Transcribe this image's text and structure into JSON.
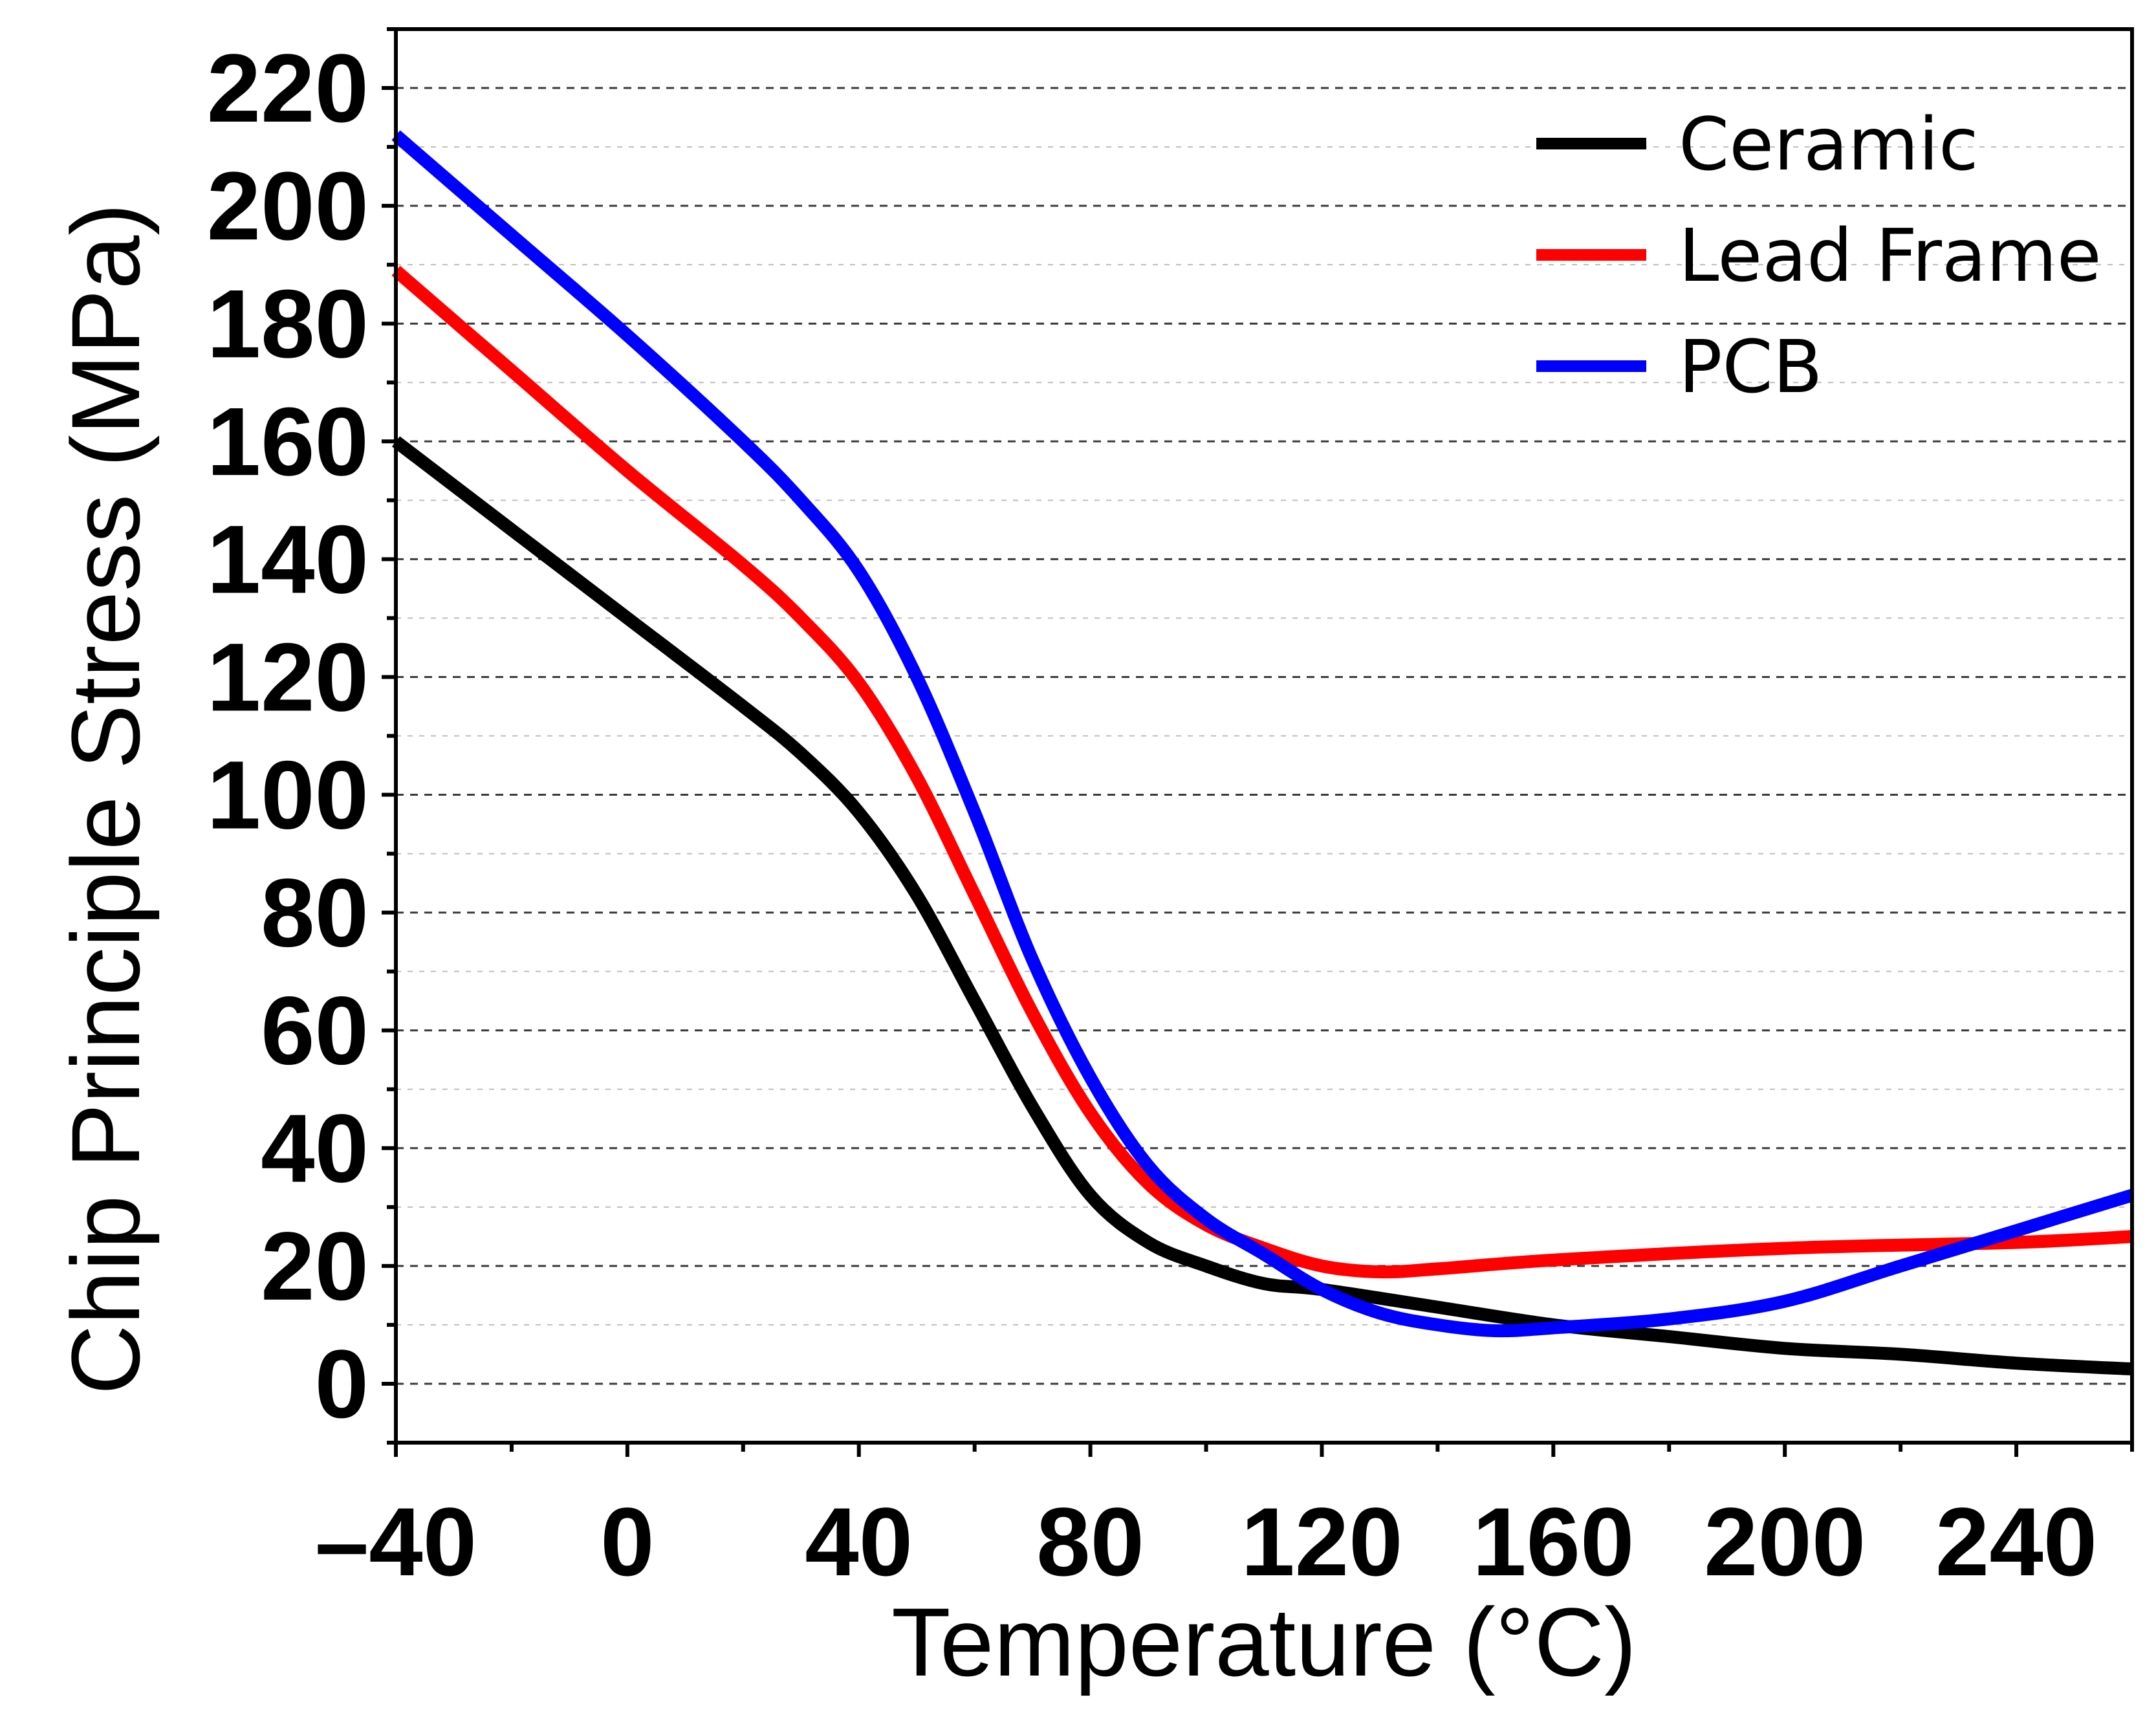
{
  "chart_data": {
    "type": "line",
    "title": "",
    "xlabel": "Temperature (°C)",
    "ylabel": "Chip Principle Stress (MPa)",
    "xlim": [
      -40,
      260
    ],
    "ylim": [
      -10,
      230
    ],
    "x_ticks": [
      -40,
      0,
      40,
      80,
      120,
      160,
      200,
      240
    ],
    "x_tick_labels": [
      "–40",
      "0",
      "40",
      "80",
      "120",
      "160",
      "200",
      "240"
    ],
    "y_ticks": [
      0,
      20,
      40,
      60,
      80,
      100,
      120,
      140,
      160,
      180,
      200,
      220
    ],
    "y_tick_labels": [
      "0",
      "20",
      "40",
      "60",
      "80",
      "100",
      "120",
      "140",
      "160",
      "180",
      "200",
      "220"
    ],
    "grid": "dashed horizontal",
    "legend_position": "top-right",
    "series": [
      {
        "name": "Ceramic",
        "color": "#000000",
        "x": [
          -40,
          -20,
          0,
          20,
          30,
          40,
          50,
          60,
          70,
          80,
          90,
          100,
          110,
          120,
          140,
          160,
          180,
          200,
          220,
          240,
          260
        ],
        "y": [
          160,
          145,
          130,
          115,
          107,
          97,
          83,
          65,
          47,
          32,
          24,
          20,
          17,
          16,
          13,
          10,
          8,
          6,
          5,
          3.5,
          2.5
        ]
      },
      {
        "name": "Lead Frame",
        "color": "#ff0000",
        "x": [
          -40,
          -20,
          0,
          20,
          30,
          40,
          50,
          60,
          70,
          80,
          90,
          100,
          110,
          120,
          130,
          140,
          160,
          200,
          240,
          260
        ],
        "y": [
          189,
          172,
          155,
          139,
          130,
          119,
          103,
          83,
          63,
          46,
          34,
          27,
          23,
          20,
          19,
          19.5,
          21,
          23,
          24,
          25
        ]
      },
      {
        "name": "PCB",
        "color": "#0000ff",
        "x": [
          -40,
          -20,
          0,
          20,
          30,
          40,
          50,
          60,
          70,
          80,
          90,
          100,
          110,
          120,
          130,
          140,
          150,
          160,
          180,
          200,
          220,
          240,
          260
        ],
        "y": [
          212,
          195,
          178,
          160,
          150,
          138,
          120,
          97,
          72,
          52,
          37,
          28,
          22,
          16,
          12,
          10,
          9,
          9.5,
          11,
          14,
          20,
          26,
          32
        ]
      }
    ]
  }
}
